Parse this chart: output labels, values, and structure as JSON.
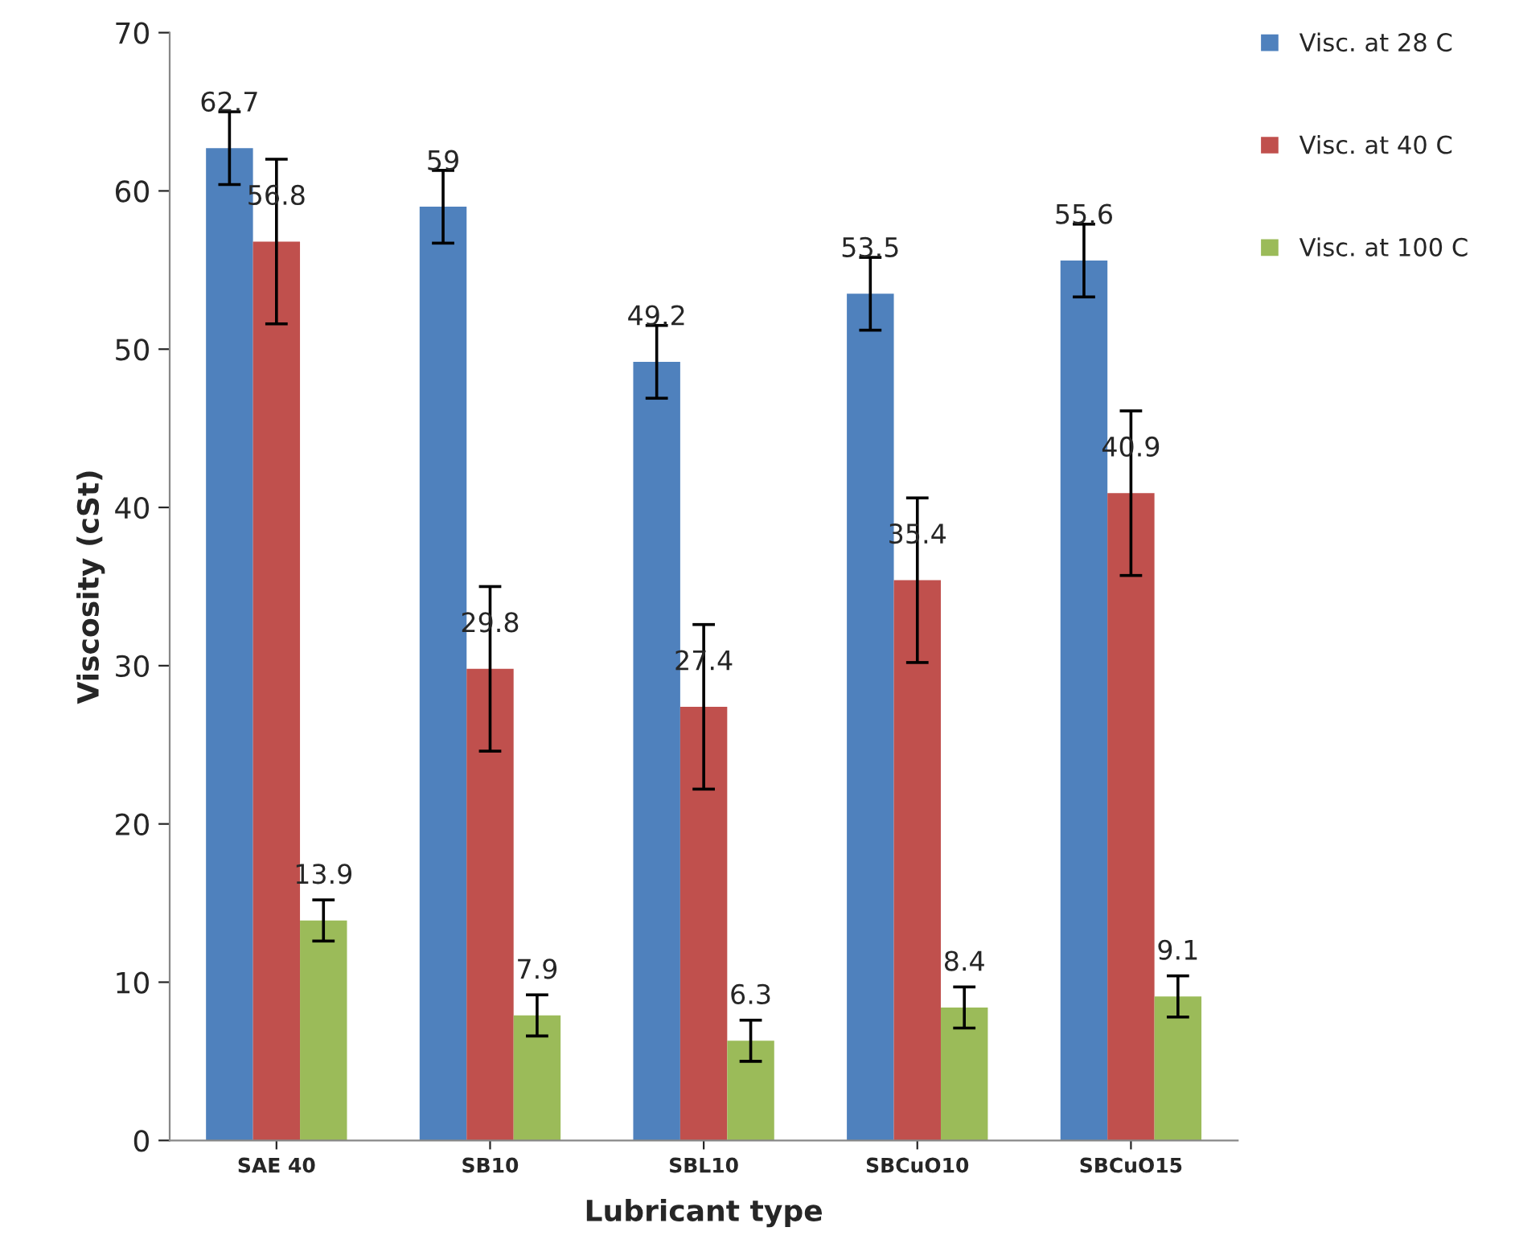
{
  "chart_data": {
    "type": "bar",
    "xlabel": "Lubricant type",
    "ylabel": "Viscosity (cSt)",
    "categories": [
      "SAE 40",
      "SB10",
      "SBL10",
      "SBCuO10",
      "SBCuO15"
    ],
    "series": [
      {
        "name": "Visc. at 28 C",
        "color": "#4f81bd",
        "values": [
          62.7,
          59,
          49.2,
          53.5,
          55.6
        ],
        "errors": [
          2.3,
          2.3,
          2.3,
          2.3,
          2.3
        ]
      },
      {
        "name": "Visc. at 40 C",
        "color": "#c0504d",
        "values": [
          56.8,
          29.8,
          27.4,
          35.4,
          40.9
        ],
        "errors": [
          5.2,
          5.2,
          5.2,
          5.2,
          5.2
        ]
      },
      {
        "name": "Visc. at 100 C",
        "color": "#9bbb59",
        "values": [
          13.9,
          7.9,
          6.3,
          8.4,
          9.1
        ],
        "errors": [
          1.3,
          1.3,
          1.3,
          1.3,
          1.3
        ]
      }
    ],
    "ylim": [
      0,
      70
    ],
    "yticks": [
      0,
      10,
      20,
      30,
      40,
      50,
      60,
      70
    ],
    "grid": false,
    "legend": "top right",
    "data_labels": true
  }
}
